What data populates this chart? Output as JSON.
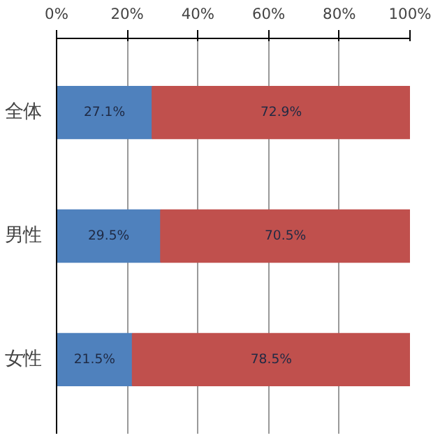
{
  "chart_data": {
    "type": "bar",
    "orientation": "horizontal",
    "stacked": true,
    "categories": [
      "全体",
      "男性",
      "女性"
    ],
    "series": [
      {
        "color": "#4f81bd",
        "values": [
          27.1,
          29.5,
          21.5
        ],
        "value_labels": [
          "27.1%",
          "29.5%",
          "21.5%"
        ]
      },
      {
        "color": "#c0504d",
        "values": [
          72.9,
          70.5,
          78.5
        ],
        "value_labels": [
          "72.9%",
          "70.5%",
          "78.5%"
        ]
      }
    ],
    "xlim": [
      0,
      100
    ],
    "xticks": [
      {
        "value": 0,
        "label": "0%"
      },
      {
        "value": 20,
        "label": "20%"
      },
      {
        "value": 40,
        "label": "40%"
      },
      {
        "value": 60,
        "label": "60%"
      },
      {
        "value": 80,
        "label": "80%"
      },
      {
        "value": 100,
        "label": "100%"
      }
    ],
    "grid": "x"
  }
}
